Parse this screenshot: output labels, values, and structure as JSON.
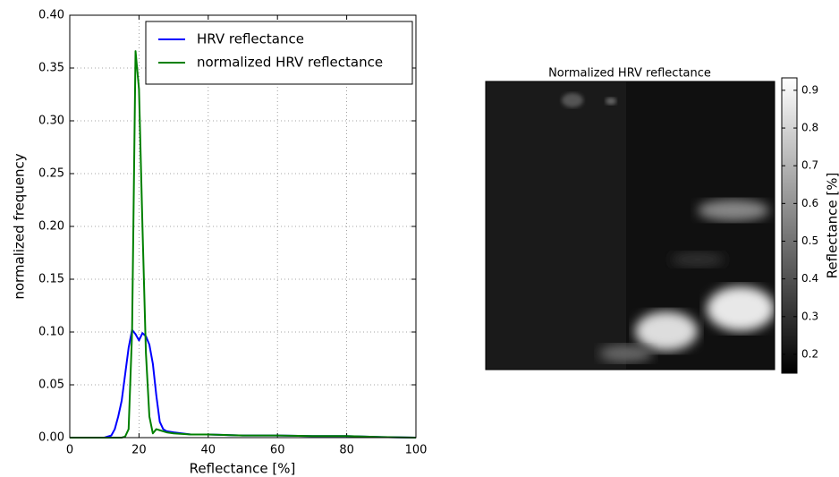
{
  "chart_data": [
    {
      "type": "line",
      "xlabel": "Reflectance [%]",
      "ylabel": "normalized frequency",
      "x": [
        0,
        10,
        12,
        13,
        14,
        15,
        16,
        17,
        18,
        19,
        20,
        21,
        22,
        23,
        24,
        25,
        26,
        27,
        28,
        30,
        35,
        40,
        50,
        60,
        70,
        80,
        90,
        100
      ],
      "series": [
        {
          "name": "HRV reflectance",
          "color": "#0000ff",
          "values": [
            0,
            0,
            0.002,
            0.008,
            0.02,
            0.035,
            0.06,
            0.085,
            0.102,
            0.098,
            0.092,
            0.099,
            0.096,
            0.088,
            0.07,
            0.04,
            0.015,
            0.008,
            0.006,
            0.005,
            0.003,
            0.003,
            0.002,
            0.002,
            0.0015,
            0.0015,
            0.0005,
            0
          ]
        },
        {
          "name": "normalized HRV reflectance",
          "color": "#008000",
          "values": [
            0,
            0,
            0,
            0,
            0,
            0,
            0.001,
            0.008,
            0.1,
            0.366,
            0.33,
            0.2,
            0.08,
            0.02,
            0.004,
            0.008,
            0.007,
            0.006,
            0.005,
            0.004,
            0.003,
            0.003,
            0.002,
            0.002,
            0.0015,
            0.0015,
            0.0005,
            0
          ]
        }
      ],
      "xlim": [
        0,
        100
      ],
      "xticks": [
        0,
        20,
        40,
        60,
        80,
        100
      ],
      "ylim": [
        0,
        0.4
      ],
      "yticks": [
        {
          "value": 0,
          "label": "0.00"
        },
        {
          "value": 0.05,
          "label": "0.05"
        },
        {
          "value": 0.1,
          "label": "0.10"
        },
        {
          "value": 0.15,
          "label": "0.15"
        },
        {
          "value": 0.2,
          "label": "0.20"
        },
        {
          "value": 0.25,
          "label": "0.25"
        },
        {
          "value": 0.3,
          "label": "0.30"
        },
        {
          "value": 0.35,
          "label": "0.35"
        },
        {
          "value": 0.4,
          "label": "0.40"
        }
      ],
      "grid": true,
      "legend": "upper right"
    },
    {
      "type": "image",
      "title": "Normalized HRV reflectance",
      "colorbar_label": "Reflectance [%]",
      "clim": [
        0.15,
        0.933
      ],
      "cticks": [
        0.2,
        0.3,
        0.4,
        0.5,
        0.6,
        0.7,
        0.8,
        0.9
      ],
      "colormap": "gray"
    }
  ]
}
